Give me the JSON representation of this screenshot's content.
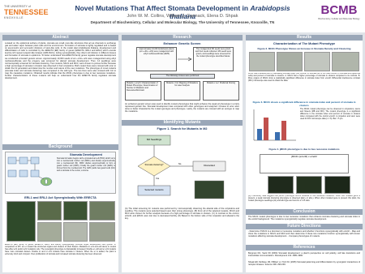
{
  "header": {
    "title_main": "Novel Mutations That Affect Stomata Development in ",
    "title_italic": "Arabidopsis thaliana",
    "authors": "John W. M. Collins, William J. Carmack, Elena D. Shpak",
    "affiliation": "Department of Biochemistry, Cellular and Molecular Biology, The University of Tennessee, Knoxville, TN",
    "logo_left_top": "THE UNIVERSITY of",
    "logo_left_main": "TENNESSEE",
    "logo_left_bottom": "KNOXVILLE",
    "logo_right": "BCMB",
    "logo_right_sub": "Biochemistry, Cellular and Molecular Biology"
  },
  "abstract": {
    "heading": "Abstract",
    "text": "Located on the epidermal surface of plants, stomata are small, pore-like structures that act as channels to exchange gas and water vapor between plant cells and the environment. Formation of stomata is tightly regulated and is based on asymmetric and symmetric divisions of stem-like cells. In the model plant Arabidopsis thaliana, development and differentiation of cells is controlled by the ERECTA (ER) family of genes (ERECTA, ERL1 and ERL2) which encode leucine-rich repeat receptor-like kinases (LRR-RLKs). Acting synergistically, they direct cell division in different tissues and formation of stomata in epidermis. To better understand how ERECTA family genes regulate stomata development we conducted a forward genetic screen. Approximately 10,000 seeds of er/+ erl1/+ erl2 were mutagenized using ethyl methanesulfonate and the progeny was screened for altered stomata development. Then, 14 seedlings were microscopically screened for stomata clustering. Two mutants, MC21 and MC3, were chosen to pursue further because a high percentage of stomata in clusters was observed in their cotyledons. Both mutant lines were crossed with er/er to obtain the F2 generation and determine the number and nature of the new mutations. The phenotype of novel mutants (stomata index and stomata clustering) was compared to the wild type. The two lines were also crossed with Col to map the causative mutations. Obtained results indicate that the MC21 phenotype is due to two recessive mutations. Further characterization of these mutants will help us understand how the ERECTA family regulates stomata development."
  },
  "background": {
    "heading": "Background",
    "diagram_title": "Stomata Development",
    "diagram_text": "Stomata formation begins with a protodermal cell (PDC) which turns into a meristemoid mother cell (MMC) and divides asymmetrically into a meristemoid (M). MMC divides asymmetrically to form a guard mother cell (GMC). Finally the guard mother cell (GMC) is formed from the meristemoid. The GMC yields two guard cells (GC) and a stomata in the center, a stoma.",
    "figure_title": "ERL1 and ERL2 Act Synergistically With ERECTA",
    "caption": "ERECTA (ER) family of genes (ERECTA, ERL1 and ERL2) synergistically promote organ development and growth. In comparison to WT, an er mutant has shortened organs and clusters of short flowers. Mutations in erl1 and erl2 alone in mutant has either erl1 and/or erl2 mutations only. The synergistic phenotype is dramatically increased. Double er erl2 and er erl1 mutants have more stomatal clusters. Double er and er erl1 mutants have stomata in clusters. When the er is added, the plant is extremely short and compact. Over-proliferation of stomata and increased stomata clustering has been observed."
  },
  "research": {
    "heading": "Research",
    "screen_title": "Enhancer Genetic Screen",
    "box1": "Approximately 10,000 Arabidopsis plants (er/+ erl1/+ erl2) were mutagenized with ethyl methanesulfonate (EMS)",
    "box2": "The mutagenized M1 seeds were grown and their seeds collected. M2 seeds were grown, and seedlings were screened for the mutant phenotype described below.",
    "following": "The following crosses were performed",
    "mutant1": "Mutants x er/er3: Characterization of Mutant Phenotype; Determination of Number of Mutations and Recessive/Dominant",
    "mutant2": "Mutants x Col: Mapping of Mutations for Later Analysis",
    "mutant3": "Mutants x Ler: Positional Cloning",
    "text": "An enhancer genetic screen was used to identify mutant phenotypes that might enhance the weak erl phenotype in a triply repressed genetic line. Stomatal development was compared with other genotypes and analyzed. Crosses to er/er were done to better characterize the mutant genotype and phenotype. Lastly, the mutants are crossed with an ecotype to map the mutations.",
    "identify_heading": "Identifying Mutants",
    "fig1_title": "Figure 1. Search for Mutants in M2",
    "fig1_start": "M2 Seedlings",
    "fig1_q": "Stomata clustering?",
    "fig1_yes": "Yes",
    "fig1_no": "No",
    "fig1_keep": "Selected mutants",
    "fig1_discard": "Discarded",
    "caption": "(A) The initial screening for mutants was performed by microscopically observing the abaxial side of the cotyledons and seedling. The mutants were selected based upon their strong phenotype. (B) From all of the selected mutants, MC21 and MC3 were chosen for further analysis because of a high percentage of stomata in clusters. (C) In contrast to the control, erl/erl2, and jMC21 were lost due to decreased fertility. (D) Based in the bottom side of the cotyledon and abaxial is the key."
  },
  "results": {
    "heading": "Results",
    "sub": "Characterization of The Mutant Phenotype",
    "fig2_title": "Figure 2. MC21 Phenotype Shows an Increase in Stomata Density and Clustering",
    "fig2_caption": "MC21 was characterized by calculating stomata index (the number of stomata out of the total number of stomata and epidermal cells) and percent of stomata in clusters. A. MC21 has a higher percentage of stomata in clusters compared to its controls. B. More organs of MC21 show a statistically significant difference in stomata index from er/erl2. Differential interference contrast (DIC) microscope was used to obtain the data.",
    "fig3_title": "Figure 3. MC21 shows a significant difference in stomata index and percent of stomata in clusters",
    "fig3_text": "The MC21 mutant phenotype can be observed in cotyledons, stems and flowers (MB and MC). The mutant phenotype is a significant difference in the stomata index and percent of stomata in clusters when compared with the control er/erl2. A cotyledon and stem were used for DIC microscope data (n = 6). Bar = 5 µm.",
    "fig4_title": "Figure 4. jMC21 phenotype is due to two recessive mutations",
    "fig4_cross": "jMC21 (er/erl2) x er/erl2",
    "fig4_caption": "(A) Preliminary data suggest that jMC21 phenotype occurs because of two recessive mutations. When one mutated gene is present, a weak stomata clustering phenotype is observed (jab/+ or ab/+). When other mutated gene is present this plant, the mutant phenotype seedlings (A1) and wild type are found in a 1:15 ratio.",
    "conclusion_heading": "Conclusion",
    "conclusion": "The MC21 mutant phenotype is due to two recessive mutations that enhance stomata clustering and stomata index in the er/erl2 background. The mutations synergistically regulate stomata development.",
    "future_heading": "Future Directions",
    "future": "- Determine if MC21 is a dominant or recessive mutations and whether it functions synergistically with er/erl2. - Map and clone the mutations in MC21 and MC3 and then determine if these two mutations function synergistically with known mutations affecting stomata development. - Compare phenotypes of mutants.",
    "references_heading": "References",
    "ref1": "Bergman DC, Sack FD (2004) Stomatal development: a plant's perspective on cell polarity, cell fate transitions and intercellular communication. Development 131: 4981-4990.",
    "ref2": "Shpak ED, McAbee JM, Pillitteri LJ, Torii KU (2005) Stomatal patterning and differentiation by synergistic interactions of receptor kinases. Science 309: 290-293."
  }
}
